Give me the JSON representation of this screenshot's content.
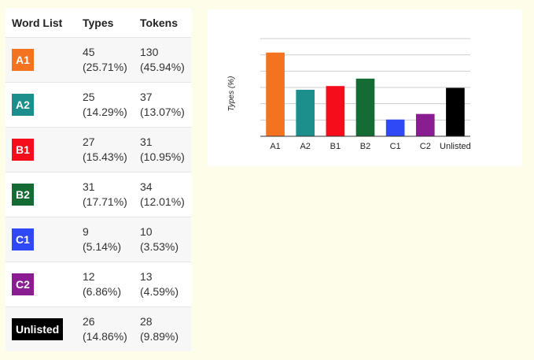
{
  "table": {
    "headers": {
      "word_list": "Word List",
      "types": "Types",
      "tokens": "Tokens"
    },
    "rows": [
      {
        "level": "A1",
        "color": "#f47321",
        "types": "45",
        "types_pct": "(25.71%)",
        "tokens": "130",
        "tokens_pct": "(45.94%)"
      },
      {
        "level": "A2",
        "color": "#1c8e8c",
        "types": "25",
        "types_pct": "(14.29%)",
        "tokens": "37",
        "tokens_pct": "(13.07%)"
      },
      {
        "level": "B1",
        "color": "#f50d1c",
        "types": "27",
        "types_pct": "(15.43%)",
        "tokens": "31",
        "tokens_pct": "(10.95%)"
      },
      {
        "level": "B2",
        "color": "#146b33",
        "types": "31",
        "types_pct": "(17.71%)",
        "tokens": "34",
        "tokens_pct": "(12.01%)"
      },
      {
        "level": "C1",
        "color": "#2e49f5",
        "types": "9",
        "types_pct": "(5.14%)",
        "tokens": "10",
        "tokens_pct": "(3.53%)"
      },
      {
        "level": "C2",
        "color": "#8b1d92",
        "types": "12",
        "types_pct": "(6.86%)",
        "tokens": "13",
        "tokens_pct": "(4.59%)"
      },
      {
        "level": "Unlisted",
        "color": "#000000",
        "types": "26",
        "types_pct": "(14.86%)",
        "tokens": "28",
        "tokens_pct": "(9.89%)"
      }
    ]
  },
  "chart_data": {
    "type": "bar",
    "title": "",
    "xlabel": "",
    "ylabel": "Types (%)",
    "categories": [
      "A1",
      "A2",
      "B1",
      "B2",
      "C1",
      "C2",
      "Unlisted"
    ],
    "values": [
      25.71,
      14.29,
      15.43,
      17.71,
      5.14,
      6.86,
      14.86
    ],
    "colors": [
      "#f47321",
      "#1c8e8c",
      "#f50d1c",
      "#146b33",
      "#2e49f5",
      "#8b1d92",
      "#000000"
    ],
    "ylim": [
      0,
      30
    ],
    "grid": true,
    "legend": "none"
  }
}
